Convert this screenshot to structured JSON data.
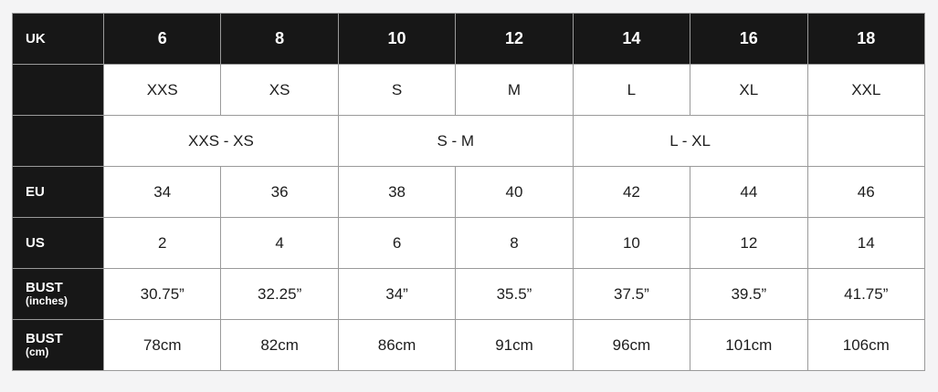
{
  "page": {
    "background_color": "#f4f4f5"
  },
  "table": {
    "colors": {
      "header_bg": "#171717",
      "header_text": "#ffffff",
      "body_bg": "#ffffff",
      "body_text": "#1d1d1d",
      "border": "#9a9a9a"
    },
    "rows": {
      "uk": {
        "label": "UK",
        "values": [
          "6",
          "8",
          "10",
          "12",
          "14",
          "16",
          "18"
        ]
      },
      "alpha": {
        "label": "",
        "values": [
          "XXS",
          "XS",
          "S",
          "M",
          "L",
          "XL",
          "XXL"
        ]
      },
      "alpha_range": {
        "label": "",
        "values": [
          "XXS - XS",
          "S - M",
          "L - XL",
          ""
        ]
      },
      "eu": {
        "label": "EU",
        "values": [
          "34",
          "36",
          "38",
          "40",
          "42",
          "44",
          "46"
        ]
      },
      "us": {
        "label": "US",
        "values": [
          "2",
          "4",
          "6",
          "8",
          "10",
          "12",
          "14"
        ]
      },
      "bust_inches": {
        "label": "BUST",
        "sublabel": "(inches)",
        "values": [
          "30.75”",
          "32.25”",
          "34”",
          "35.5”",
          "37.5”",
          "39.5”",
          "41.75”"
        ]
      },
      "bust_cm": {
        "label": "BUST",
        "sublabel": "(cm)",
        "values": [
          "78cm",
          "82cm",
          "86cm",
          "91cm",
          "96cm",
          "101cm",
          "106cm"
        ]
      }
    }
  }
}
